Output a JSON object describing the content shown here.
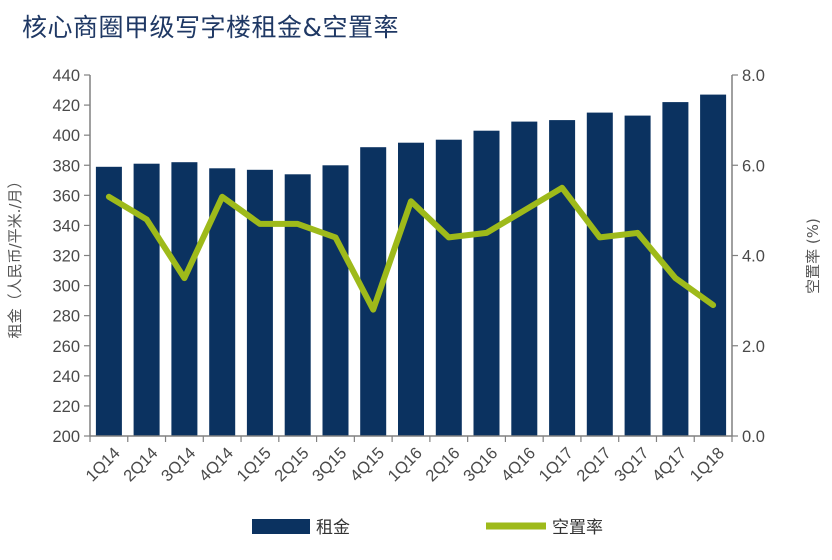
{
  "colors": {
    "bar": "#0b3260",
    "line": "#9eba1a",
    "axis": "#808080",
    "text": "#4a4a4a",
    "title": "#1f3864"
  },
  "chart_data": {
    "type": "bar",
    "title": "核心商圈甲级写字楼租金&空置率",
    "categories": [
      "1Q14",
      "2Q14",
      "3Q14",
      "4Q14",
      "1Q15",
      "2Q15",
      "3Q15",
      "4Q15",
      "1Q16",
      "2Q16",
      "3Q16",
      "4Q16",
      "1Q17",
      "2Q17",
      "3Q17",
      "4Q17",
      "1Q18"
    ],
    "series": [
      {
        "name": "租金",
        "type": "bar",
        "axis": "left",
        "values": [
          379,
          381,
          382,
          378,
          377,
          374,
          380,
          392,
          395,
          397,
          403,
          409,
          410,
          415,
          413,
          422,
          427
        ]
      },
      {
        "name": "空置率",
        "type": "line",
        "axis": "right",
        "values": [
          5.3,
          4.8,
          3.5,
          5.3,
          4.7,
          4.7,
          4.4,
          2.8,
          5.2,
          4.4,
          4.5,
          5.0,
          5.5,
          4.4,
          4.5,
          3.5,
          2.9
        ]
      }
    ],
    "ylabel": "租金（人民币/平米./月）",
    "y2label": "空置率 (%)",
    "ylim": [
      200,
      440
    ],
    "y2lim": [
      0,
      8
    ],
    "yticks": [
      "200",
      "220",
      "240",
      "260",
      "280",
      "300",
      "320",
      "340",
      "360",
      "380",
      "400",
      "420",
      "440"
    ],
    "y2ticks": [
      "0.0",
      "2.0",
      "4.0",
      "6.0",
      "8.0"
    ],
    "grid": false,
    "legend_position": "bottom"
  }
}
